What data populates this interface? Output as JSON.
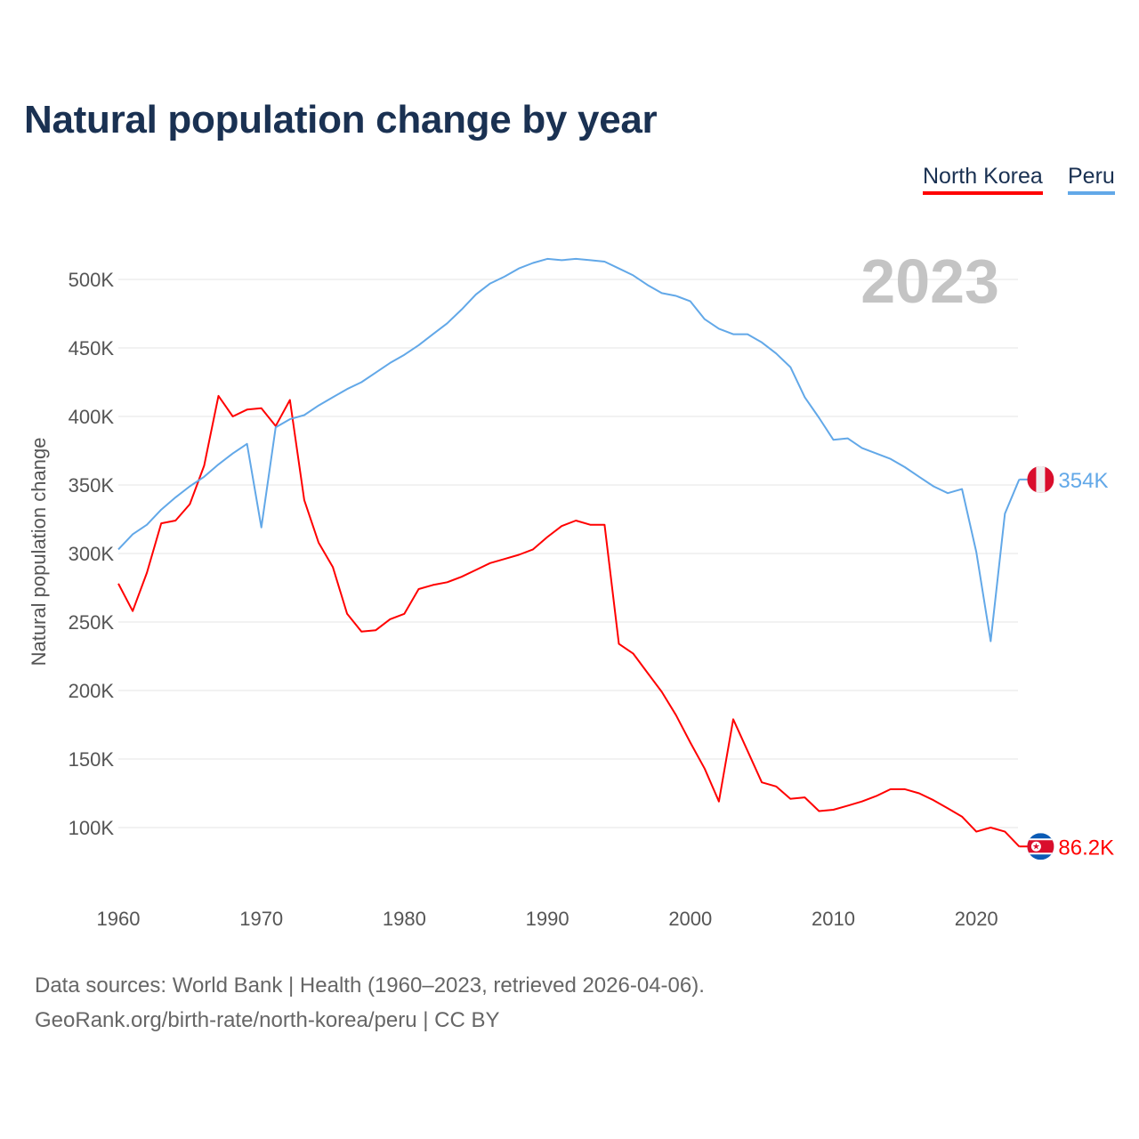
{
  "chart_data": {
    "type": "line",
    "title": "Natural population change by year",
    "xlabel": "",
    "ylabel": "Natural population change",
    "xlim": [
      1960,
      2023
    ],
    "ylim": [
      50,
      520
    ],
    "grid": true,
    "legend_placement": "top-right",
    "x_ticks": [
      1960,
      1970,
      1980,
      1990,
      2000,
      2010,
      2020
    ],
    "x_tick_labels": [
      "1960",
      "1970",
      "1980",
      "1990",
      "2000",
      "2010",
      "2020"
    ],
    "y_ticks": [
      100,
      150,
      200,
      250,
      300,
      350,
      400,
      450,
      500
    ],
    "y_tick_labels": [
      "100K",
      "150K",
      "200K",
      "250K",
      "300K",
      "350K",
      "400K",
      "450K",
      "500K"
    ],
    "year_label": "2023",
    "units": "thousands",
    "x": [
      1960,
      1961,
      1962,
      1963,
      1964,
      1965,
      1966,
      1967,
      1968,
      1969,
      1970,
      1971,
      1972,
      1973,
      1974,
      1975,
      1976,
      1977,
      1978,
      1979,
      1980,
      1981,
      1982,
      1983,
      1984,
      1985,
      1986,
      1987,
      1988,
      1989,
      1990,
      1991,
      1992,
      1993,
      1994,
      1995,
      1996,
      1997,
      1998,
      1999,
      2000,
      2001,
      2002,
      2003,
      2004,
      2005,
      2006,
      2007,
      2008,
      2009,
      2010,
      2011,
      2012,
      2013,
      2014,
      2015,
      2016,
      2017,
      2018,
      2019,
      2020,
      2021,
      2022,
      2023
    ],
    "series": [
      {
        "name": "North Korea",
        "color": "#ff0000",
        "end_label": "86.2K",
        "flag": "north-korea",
        "values": [
          278,
          258,
          286,
          322,
          324,
          336,
          364,
          415,
          400,
          405,
          406,
          393,
          412,
          339,
          308,
          290,
          256,
          243,
          244,
          252,
          256,
          274,
          277,
          279,
          283,
          288,
          293,
          296,
          299,
          303,
          312,
          320,
          324,
          321,
          321,
          234,
          227,
          213,
          199,
          182,
          162,
          143,
          119,
          179,
          156,
          133,
          130,
          121,
          122,
          112,
          113,
          116,
          119,
          123,
          128,
          128,
          125,
          120,
          114,
          108,
          97,
          100,
          97,
          86.2
        ]
      },
      {
        "name": "Peru",
        "color": "#62a8e8",
        "end_label": "354K",
        "flag": "peru",
        "values": [
          303,
          314,
          321,
          332,
          341,
          349,
          356,
          365,
          373,
          380,
          319,
          392,
          398,
          401,
          408,
          414,
          420,
          425,
          432,
          439,
          445,
          452,
          460,
          468,
          478,
          489,
          497,
          502,
          508,
          512,
          515,
          514,
          515,
          514,
          513,
          508,
          503,
          496,
          490,
          488,
          484,
          471,
          464,
          460,
          460,
          454,
          446,
          436,
          414,
          399,
          383,
          384,
          377,
          373,
          369,
          363,
          356,
          349,
          344,
          347,
          301,
          236,
          329,
          354
        ]
      }
    ]
  },
  "source": {
    "line1": "Data sources: World Bank | Health (1960–2023, retrieved 2026-04-06).",
    "line2": "GeoRank.org/birth-rate/north-korea/peru | CC BY"
  }
}
